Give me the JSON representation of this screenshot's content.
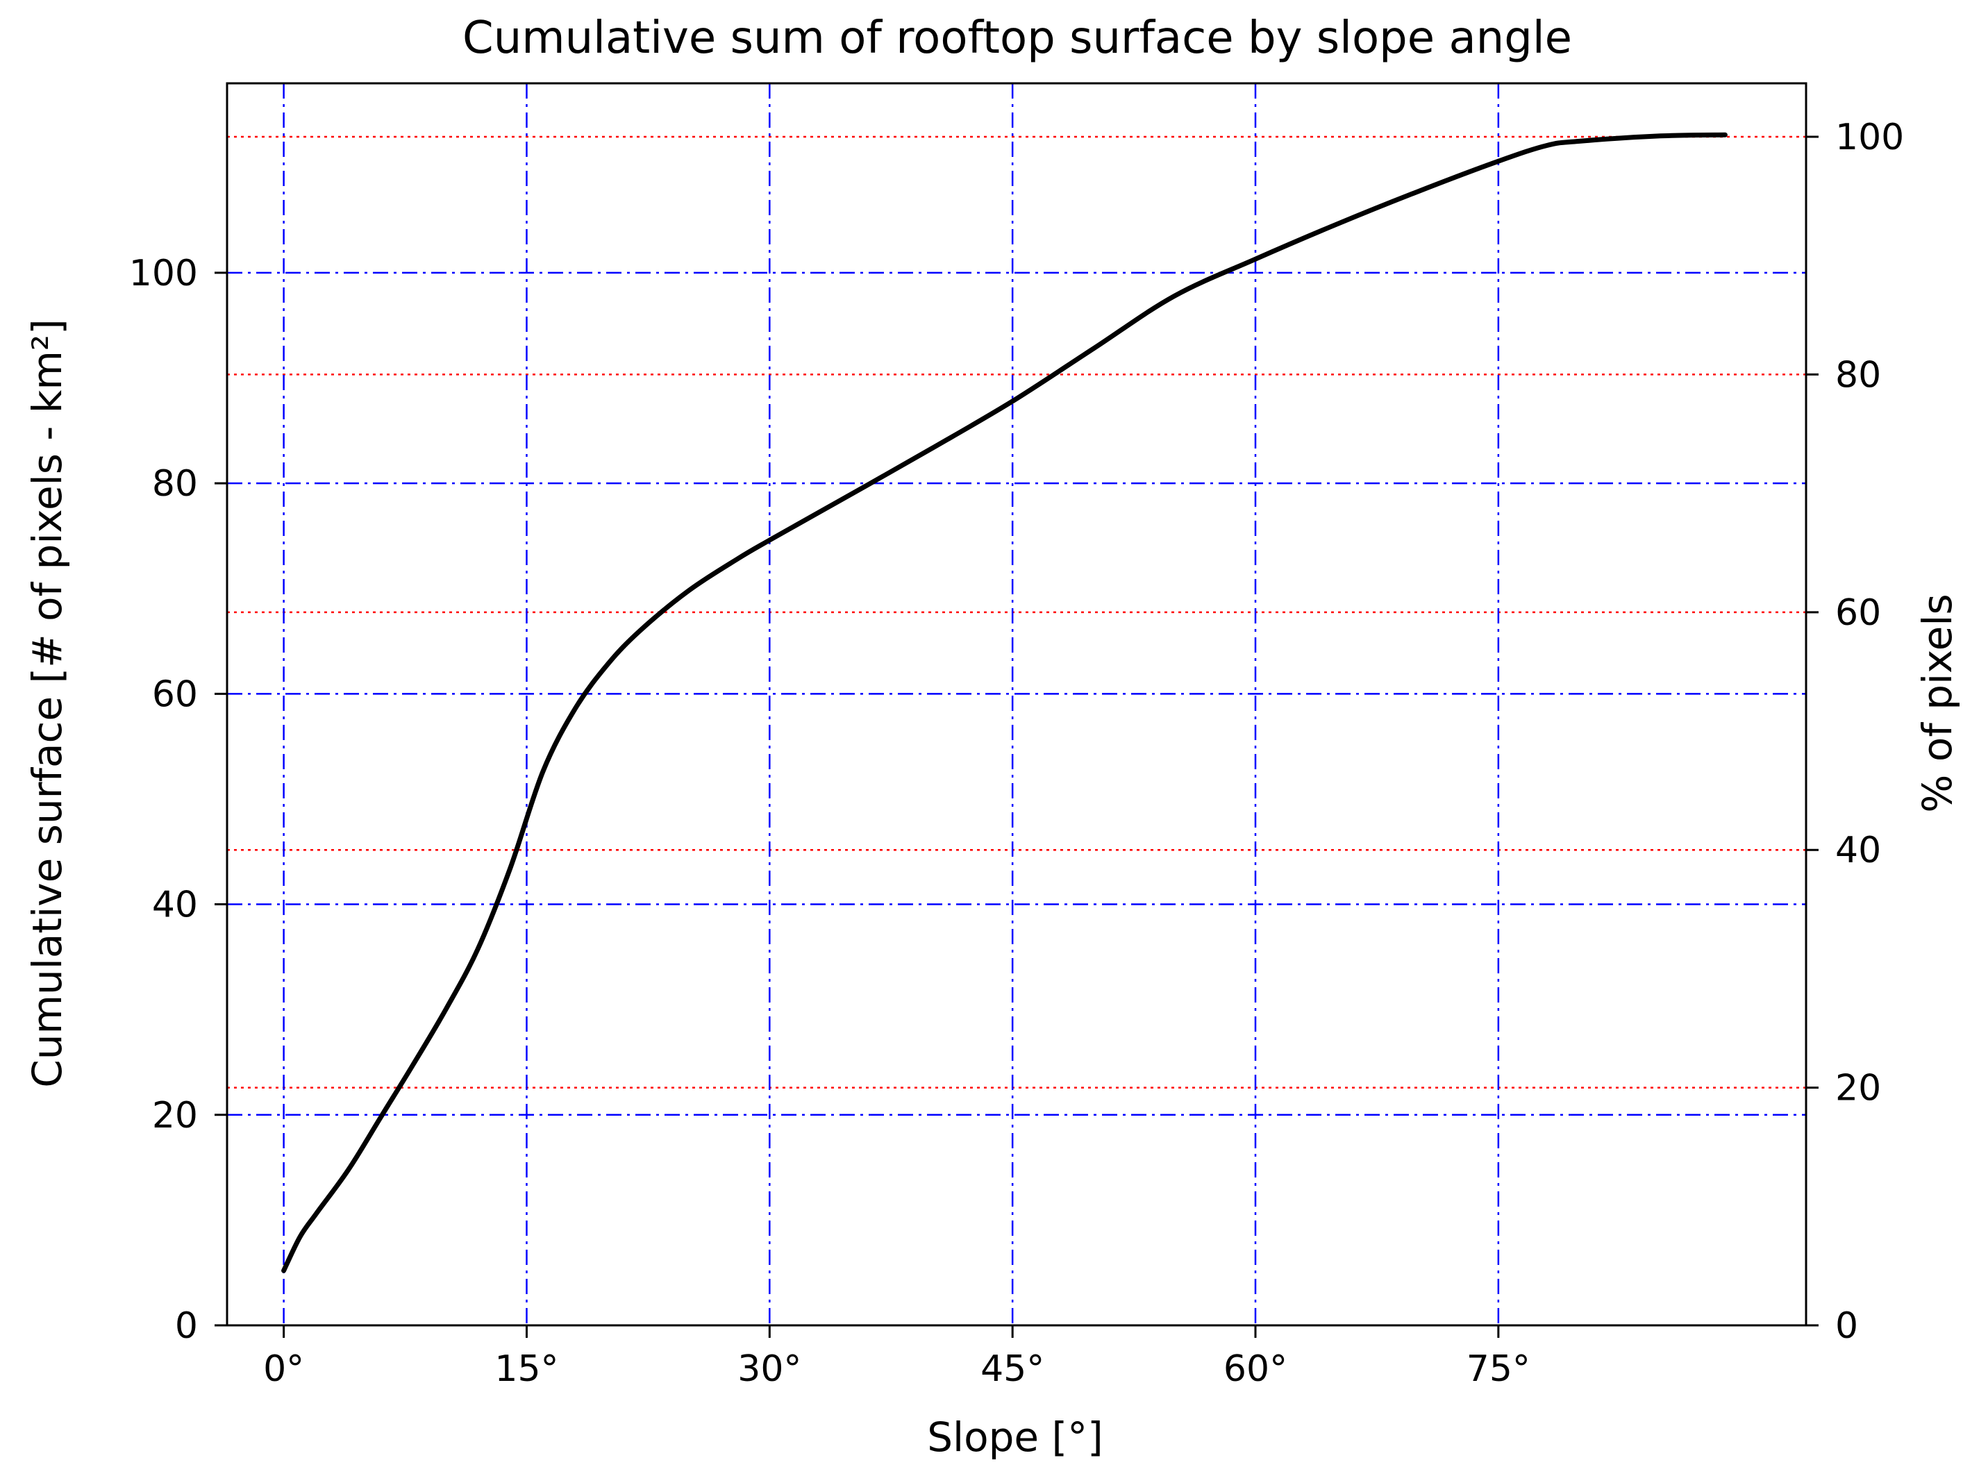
{
  "chart_data": {
    "type": "line",
    "title": "Cumulative sum of rooftop surface by slope angle",
    "xlabel": "Slope [°]",
    "ylabel": "Cumulative surface [# of pixels - km²]",
    "ylabel_right": "% of pixels",
    "xlim": [
      -3.5,
      94
    ],
    "ylim": [
      0,
      118
    ],
    "ylim_right": [
      0,
      104.5
    ],
    "x_ticks": [
      {
        "value": 0,
        "label": "0°"
      },
      {
        "value": 15,
        "label": "15°"
      },
      {
        "value": 30,
        "label": "30°"
      },
      {
        "value": 45,
        "label": "45°"
      },
      {
        "value": 60,
        "label": "60°"
      },
      {
        "value": 75,
        "label": "75°"
      }
    ],
    "y_ticks": [
      {
        "value": 0,
        "label": "0"
      },
      {
        "value": 20,
        "label": "20"
      },
      {
        "value": 40,
        "label": "40"
      },
      {
        "value": 60,
        "label": "60"
      },
      {
        "value": 80,
        "label": "80"
      },
      {
        "value": 100,
        "label": "100"
      }
    ],
    "y_right_ticks": [
      {
        "value": 0,
        "label": "0"
      },
      {
        "value": 20,
        "label": "20"
      },
      {
        "value": 40,
        "label": "40"
      },
      {
        "value": 60,
        "label": "60"
      },
      {
        "value": 80,
        "label": "80"
      },
      {
        "value": 100,
        "label": "100"
      }
    ],
    "grid": {
      "primary": {
        "color": "#0000ff",
        "style": "dashdot",
        "axes": "x and left y"
      },
      "secondary": {
        "color": "#ff0000",
        "style": "dotted",
        "axes": "right y"
      }
    },
    "series": [
      {
        "color": "#000000",
        "x": [
          0,
          1,
          2,
          4,
          6,
          8,
          10,
          12,
          14,
          16,
          18,
          20,
          22,
          25,
          28,
          30,
          33,
          36,
          40,
          45,
          50,
          55,
          60,
          65,
          70,
          75,
          78,
          80,
          85,
          89
        ],
        "y": [
          5.2,
          8.4,
          10.6,
          14.8,
          19.8,
          24.8,
          30.0,
          35.8,
          43.5,
          52.6,
          58.6,
          62.8,
          66.0,
          69.8,
          72.8,
          74.6,
          77.2,
          79.8,
          83.3,
          87.8,
          92.8,
          97.8,
          101.3,
          104.6,
          107.7,
          110.6,
          112.1,
          112.5,
          113.0,
          113.1
        ]
      }
    ]
  }
}
